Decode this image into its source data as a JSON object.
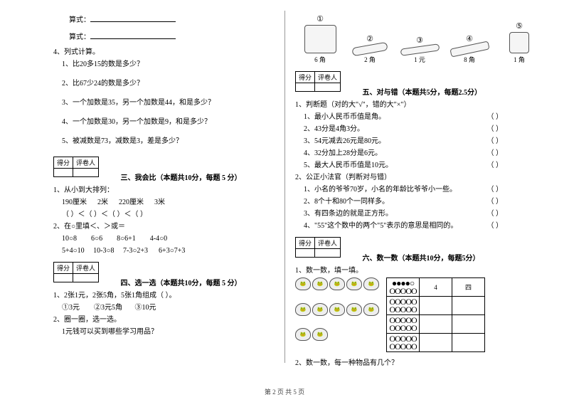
{
  "left": {
    "formula_label": "算式：",
    "q4": {
      "heading": "4、列式计算。",
      "items": [
        "1、比20多15的数是多少？",
        "2、比67少24的数是多少？",
        "3、一个加数是35，另一个加数是44，和是多少？",
        "4、一个加数是30，另一个加数是9，和是多少？",
        "5、被减数是73，减数是3，差是多少？"
      ]
    },
    "score_labels": {
      "a": "得分",
      "b": "评卷人"
    },
    "section3": {
      "title": "三、我会比（本题共10分，每题 5 分）",
      "q1": {
        "heading": "1、从小到大排列：",
        "values": "190厘米      2米      220厘米      3米",
        "blanks": "（     ）＜（     ）＜（     ）＜（     ）"
      },
      "q2": {
        "heading": "2、在○里填＜、＞或＝",
        "row1": "10○8        6○6        8○6+1        4-4○0",
        "row2": "5+4○10     10-3○8     7-3○2+3      6+3○7+3"
      }
    },
    "section4": {
      "title": "四、选一选（本题共10分，每题 5 分）",
      "q1": {
        "heading": "1、2张1元，2张5角，5张1角组成（     ）。",
        "opts": "①3元        ②3元5角       ③10元"
      },
      "q2": {
        "heading": "2、圈一圈，选一选。",
        "sub": "1元钱可以买到哪些学习用品？"
      }
    }
  },
  "right": {
    "items": [
      {
        "num": "①",
        "label": "6 角",
        "cls": ""
      },
      {
        "num": "②",
        "label": "2 角",
        "cls": "pencil"
      },
      {
        "num": "③",
        "label": "1 元",
        "cls": "pen"
      },
      {
        "num": "④",
        "label": "8 角",
        "cls": "wide"
      },
      {
        "num": "⑤",
        "label": "1 角",
        "cls": "eraser"
      }
    ],
    "score_labels": {
      "a": "得分",
      "b": "评卷人"
    },
    "section5": {
      "title": "五、对与错（本题共5分，每题2.5分）",
      "q1": {
        "heading": "1、判断题（对的大\"√\"，错的大\"×\"）",
        "items": [
          "1、最小人民币币值是角。",
          "2、43分是4角3分。",
          "3、54元减去26元是80元。",
          "4、32分加上28分是6元。",
          "5、最大人民币币值是10元。"
        ]
      },
      "q2": {
        "heading": "2、公正小法官（判断对与错）",
        "items": [
          "1、小名的爷爷70岁，小名的年龄比爷爷小一些。",
          "2、8个十和80个一同样多。",
          "3、有四条边的就是正方形。",
          "4、\"55\"这个数中的两个\"5\"表示的意思是相同的。"
        ]
      }
    },
    "section6": {
      "title": "六、数一数（本题共10分，每题5分）",
      "q1": "1、数一数，填一填。",
      "tbl": {
        "r1": [
          "●●●●○\nOOOOO",
          "4",
          "四"
        ],
        "r2": [
          "OOOOO\nOOOOO",
          "",
          ""
        ],
        "r3": [
          "OOOOO\nOOOOO",
          "",
          ""
        ],
        "r4": [
          "OOOOO\nOOOOO",
          "",
          ""
        ]
      },
      "q2": "2、数一数，每一种物品有几个？"
    }
  },
  "footer": "第 2 页 共 5 页"
}
